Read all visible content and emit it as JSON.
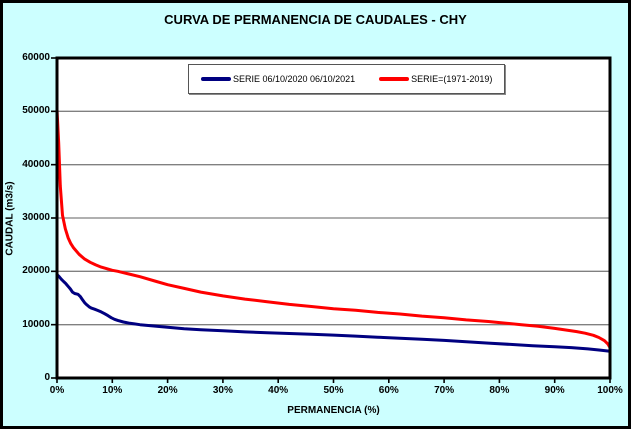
{
  "window": {
    "background_color": "#CCFFFF"
  },
  "colors": {
    "background": "#CCFFFF",
    "plot_background": "#FFFFFF",
    "grid": "#808080",
    "axis": "#000000",
    "series1": "#000080",
    "series2": "#FF0000"
  },
  "chart_data": {
    "type": "line",
    "title": "CURVA DE PERMANENCIA DE CAUDALES - CHY",
    "xlabel": "PERMANENCIA (%)",
    "ylabel": "CAUDAL (m3/s)",
    "xlim": [
      0,
      100
    ],
    "ylim": [
      0,
      60000
    ],
    "x_ticks": [
      0,
      10,
      20,
      30,
      40,
      50,
      60,
      70,
      80,
      90,
      100
    ],
    "x_tick_labels": [
      "0%",
      "10%",
      "20%",
      "30%",
      "40%",
      "50%",
      "60%",
      "70%",
      "80%",
      "90%",
      "100%"
    ],
    "y_ticks": [
      0,
      10000,
      20000,
      30000,
      40000,
      50000,
      60000
    ],
    "y_tick_labels": [
      "0",
      "10000",
      "20000",
      "30000",
      "40000",
      "50000",
      "60000"
    ],
    "grid": "horizontal-only",
    "legend_position": "top-inside",
    "plot_border": "black-thick",
    "series": [
      {
        "name": "SERIE 06/10/2020 06/10/2021",
        "color": "#000080",
        "points": [
          [
            0,
            19400
          ],
          [
            0.4,
            19000
          ],
          [
            0.8,
            18500
          ],
          [
            1.2,
            18100
          ],
          [
            1.6,
            17700
          ],
          [
            2,
            17200
          ],
          [
            2.4,
            16700
          ],
          [
            2.8,
            16100
          ],
          [
            3.2,
            15850
          ],
          [
            3.8,
            15700
          ],
          [
            4.2,
            15300
          ],
          [
            4.6,
            14700
          ],
          [
            5,
            14100
          ],
          [
            5.4,
            13700
          ],
          [
            5.8,
            13350
          ],
          [
            6.2,
            13100
          ],
          [
            6.8,
            12900
          ],
          [
            7.4,
            12650
          ],
          [
            8,
            12400
          ],
          [
            8.6,
            12050
          ],
          [
            9.2,
            11700
          ],
          [
            9.8,
            11300
          ],
          [
            10.4,
            11000
          ],
          [
            11,
            10800
          ],
          [
            12,
            10500
          ],
          [
            13,
            10300
          ],
          [
            14,
            10150
          ],
          [
            15,
            10000
          ],
          [
            16,
            9900
          ],
          [
            18,
            9700
          ],
          [
            20,
            9500
          ],
          [
            23,
            9250
          ],
          [
            26,
            9050
          ],
          [
            30,
            8850
          ],
          [
            34,
            8650
          ],
          [
            38,
            8500
          ],
          [
            42,
            8350
          ],
          [
            46,
            8200
          ],
          [
            50,
            8050
          ],
          [
            54,
            7850
          ],
          [
            58,
            7650
          ],
          [
            62,
            7450
          ],
          [
            66,
            7250
          ],
          [
            70,
            7050
          ],
          [
            74,
            6800
          ],
          [
            78,
            6550
          ],
          [
            82,
            6300
          ],
          [
            86,
            6050
          ],
          [
            90,
            5850
          ],
          [
            93,
            5700
          ],
          [
            96,
            5450
          ],
          [
            98,
            5250
          ],
          [
            100,
            5000
          ]
        ]
      },
      {
        "name": "SERIE=(1971-2019)",
        "color": "#FF0000",
        "points": [
          [
            0,
            50300
          ],
          [
            0.3,
            44000
          ],
          [
            0.6,
            36000
          ],
          [
            1,
            30500
          ],
          [
            1.5,
            28000
          ],
          [
            2,
            26300
          ],
          [
            2.5,
            25200
          ],
          [
            3,
            24400
          ],
          [
            4,
            23200
          ],
          [
            5,
            22300
          ],
          [
            6,
            21700
          ],
          [
            7,
            21200
          ],
          [
            8,
            20800
          ],
          [
            9,
            20500
          ],
          [
            10,
            20200
          ],
          [
            11,
            20000
          ],
          [
            13,
            19500
          ],
          [
            15,
            19000
          ],
          [
            18,
            18100
          ],
          [
            20,
            17500
          ],
          [
            23,
            16800
          ],
          [
            26,
            16100
          ],
          [
            30,
            15400
          ],
          [
            34,
            14800
          ],
          [
            38,
            14300
          ],
          [
            42,
            13800
          ],
          [
            46,
            13400
          ],
          [
            50,
            13000
          ],
          [
            54,
            12700
          ],
          [
            58,
            12300
          ],
          [
            62,
            12000
          ],
          [
            66,
            11600
          ],
          [
            70,
            11300
          ],
          [
            74,
            10900
          ],
          [
            78,
            10600
          ],
          [
            81,
            10300
          ],
          [
            84,
            10000
          ],
          [
            87,
            9700
          ],
          [
            90,
            9300
          ],
          [
            92,
            9000
          ],
          [
            94,
            8700
          ],
          [
            95.5,
            8400
          ],
          [
            97,
            8000
          ],
          [
            98,
            7600
          ],
          [
            99,
            7000
          ],
          [
            99.6,
            6400
          ],
          [
            100,
            5700
          ]
        ]
      }
    ]
  }
}
